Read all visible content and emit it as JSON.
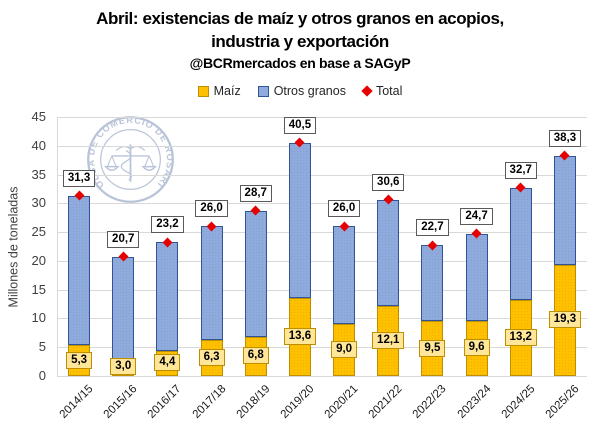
{
  "header": {
    "title_line1": "Abril: existencias de maíz y otros granos en acopios,",
    "title_line2": "industria y exportación",
    "subtitle": "@BCRmercados en base a SAGyP"
  },
  "watermark": {
    "text": "BOLSA DE COMERCIO DE ROSARIO",
    "icon": "scales-caduceus-icon",
    "color": "#AEBAD2"
  },
  "chart_data": {
    "type": "bar",
    "stacked": true,
    "title": "Abril: existencias de maíz y otros granos en acopios, industria y exportación",
    "subtitle": "@BCRmercados en base a SAGyP",
    "ylabel": "Millones de toneladas",
    "ylim": [
      0,
      45
    ],
    "ytick_step": 5,
    "grid": true,
    "legend_position": "top",
    "decimal_separator": ",",
    "gridline_color": "#D9D9D9",
    "categories": [
      "2014/15",
      "2015/16",
      "2016/17",
      "2017/18",
      "2018/19",
      "2019/20",
      "2020/21",
      "2021/22",
      "2022/23",
      "2023/24",
      "2024/25",
      "2025/26"
    ],
    "series": [
      {
        "name": "Maíz",
        "color": "#FFC000",
        "border_color": "#BF8F00",
        "label_bg": "#FFE699",
        "label_border": "#BF8F00",
        "values": [
          5.3,
          3.0,
          4.4,
          6.3,
          6.8,
          13.6,
          9.0,
          12.1,
          9.5,
          9.6,
          13.2,
          19.3
        ]
      },
      {
        "name": "Otros granos",
        "color": "#8FAADC",
        "border_color": "#2F5597",
        "values": [
          26.0,
          17.7,
          18.8,
          19.7,
          21.9,
          26.9,
          17.0,
          18.5,
          13.2,
          15.1,
          19.5,
          19.0
        ]
      }
    ],
    "total_series": {
      "name": "Total",
      "marker": "diamond",
      "color": "#E60000",
      "label_bg": "#FFFFFF",
      "label_border": "#595959",
      "values": [
        31.3,
        20.7,
        23.2,
        26.0,
        28.7,
        40.5,
        26.0,
        30.6,
        22.7,
        24.7,
        32.7,
        38.3
      ]
    }
  }
}
